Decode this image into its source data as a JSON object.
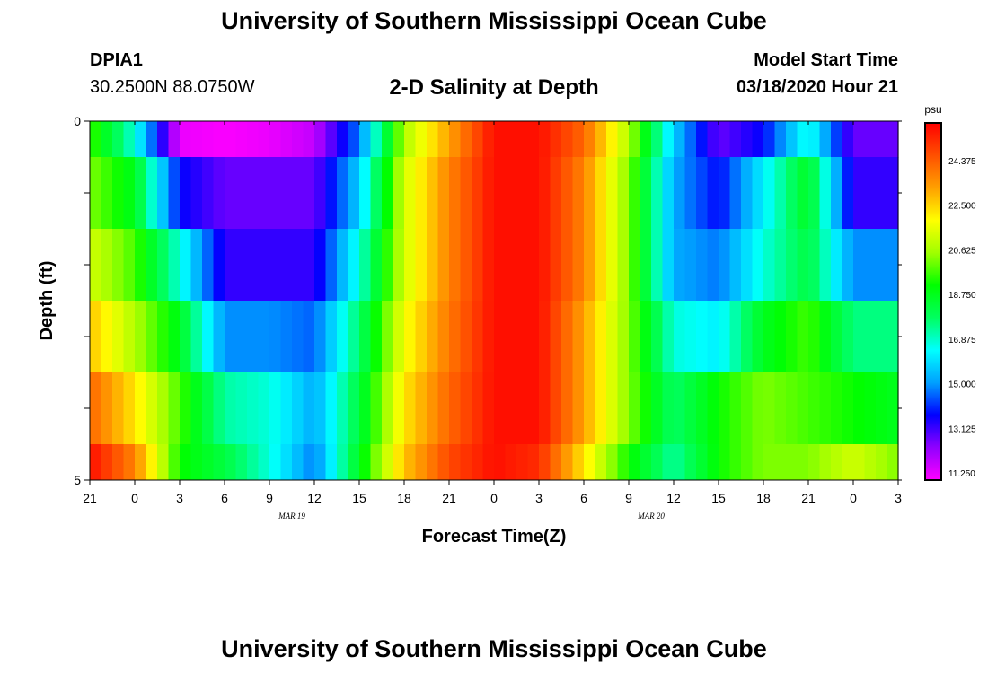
{
  "header": {
    "title": "University of Southern Mississippi Ocean Cube",
    "station_id": "DPIA1",
    "coords": "30.2500N 88.0750W",
    "model_start_label": "Model Start Time",
    "model_start_value": "03/18/2020 Hour 21"
  },
  "footer": {
    "title": "University of Southern Mississippi Ocean Cube"
  },
  "chart_data": {
    "type": "heatmap",
    "title": "2-D Salinity at Depth",
    "xlabel": "Forecast Time(Z)",
    "ylabel": "Depth (ft)",
    "x_tick_labels": [
      "21",
      "0",
      "3",
      "6",
      "9",
      "12",
      "15",
      "18",
      "21",
      "0",
      "3",
      "6",
      "9",
      "12",
      "15",
      "18",
      "21",
      "0",
      "3"
    ],
    "date_labels": [
      {
        "label": "MAR 19",
        "at_tick": 4.5
      },
      {
        "label": "MAR 20",
        "at_tick": 12.5
      }
    ],
    "y_tick_labels": [
      "0",
      "5"
    ],
    "ylim": [
      0,
      5
    ],
    "colorbar": {
      "unit": "psu",
      "range": [
        11.25,
        26.25
      ],
      "tick_values": [
        11.25,
        13.125,
        15.0,
        16.875,
        18.75,
        20.625,
        22.5,
        24.375
      ],
      "tick_labels": [
        "11.250",
        "13.125",
        "15.000",
        "16.875",
        "18.750",
        "20.625",
        "22.500",
        "24.375"
      ],
      "colors": [
        "#ff00ff",
        "#9000ff",
        "#0000ff",
        "#00a0ff",
        "#00ffff",
        "#00ff60",
        "#00ff00",
        "#a0ff00",
        "#ffff00",
        "#ffa000",
        "#ff5000",
        "#ff0000"
      ]
    },
    "time_hours": [
      0,
      3,
      6,
      9,
      12,
      15,
      18,
      21,
      24,
      27,
      30,
      33,
      36,
      39,
      42,
      45,
      48,
      51,
      54
    ],
    "depth_layers": [
      {
        "depth_range": [
          0,
          0.5
        ],
        "values": [
          20,
          17,
          11.5,
          11.3,
          11.5,
          12,
          15,
          21,
          23.5,
          26,
          26,
          24.5,
          21,
          16,
          13,
          14,
          17,
          13,
          13
        ]
      },
      {
        "depth_range": [
          0.5,
          1.5
        ],
        "values": [
          20.5,
          19,
          14,
          13,
          13,
          13,
          16,
          21.5,
          24,
          26,
          26,
          24,
          20.5,
          15.5,
          14,
          16.5,
          19,
          13.5,
          13.5
        ]
      },
      {
        "depth_range": [
          1.5,
          2.5
        ],
        "values": [
          21.5,
          20,
          17,
          13.5,
          13.5,
          13.5,
          17,
          21.5,
          24,
          26,
          26,
          24,
          20.5,
          15.5,
          15,
          17,
          18.5,
          15.2,
          15.2
        ]
      },
      {
        "depth_range": [
          2.5,
          3.5
        ],
        "values": [
          23,
          21,
          19,
          15.2,
          15.2,
          14.8,
          18,
          22,
          24.2,
          26,
          26,
          23.5,
          20.5,
          17,
          16.5,
          19,
          20,
          17.8,
          17.8
        ]
      },
      {
        "depth_range": [
          3.5,
          4.5
        ],
        "values": [
          24.5,
          22.5,
          20,
          17.5,
          17,
          15.5,
          18.5,
          22.5,
          24.5,
          26,
          26,
          23.5,
          20.5,
          18,
          19.5,
          20.5,
          20,
          19.5,
          19
        ]
      },
      {
        "depth_range": [
          4.5,
          5
        ],
        "values": [
          26,
          24,
          19.5,
          18.5,
          17,
          15,
          19,
          23,
          25,
          26,
          25.5,
          22.5,
          19.5,
          17.5,
          19.5,
          20.5,
          20.5,
          21.5,
          20.5
        ]
      }
    ]
  }
}
